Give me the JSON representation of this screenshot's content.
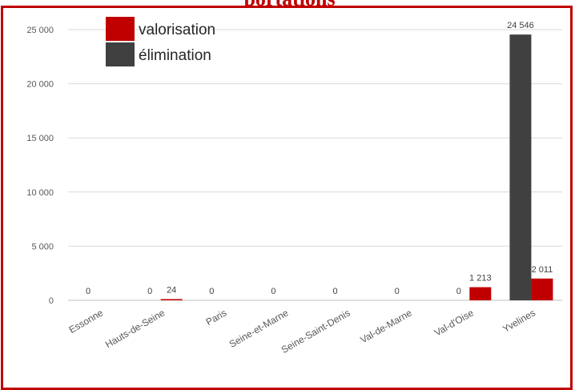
{
  "colors": {
    "valorisation": "#c00000",
    "elimination": "#404040",
    "frame": "#c00000",
    "grid": "#d9d9d9"
  },
  "chart_data": {
    "type": "bar",
    "title_fragment": "portations",
    "categories": [
      "Essonne",
      "Hauts-de-Seine",
      "Paris",
      "Seine-et-Marne",
      "Seine-Saint-Denis",
      "Val-de-Marne",
      "Val-d'Oise",
      "Yvelines"
    ],
    "series": [
      {
        "name": "élimination",
        "values": [
          0,
          0,
          0,
          0,
          0,
          0,
          0,
          24546
        ],
        "labels": [
          "0",
          "0",
          "0",
          "0",
          "0",
          "0",
          "0",
          "24 546"
        ]
      },
      {
        "name": "valorisation",
        "values": [
          0,
          24,
          0,
          0,
          0,
          0,
          1213,
          2011
        ],
        "labels": [
          "",
          "24",
          "",
          "",
          "",
          "",
          "1 213",
          "2 011"
        ]
      }
    ],
    "legend_order": [
      "valorisation",
      "élimination"
    ],
    "ylim": [
      0,
      25000
    ],
    "yticks": [
      0,
      5000,
      10000,
      15000,
      20000,
      25000
    ],
    "ytick_labels": [
      "0",
      "5 000",
      "10 000",
      "15 000",
      "20 000",
      "25 000"
    ],
    "grid": true,
    "legend_position": "top-left"
  }
}
